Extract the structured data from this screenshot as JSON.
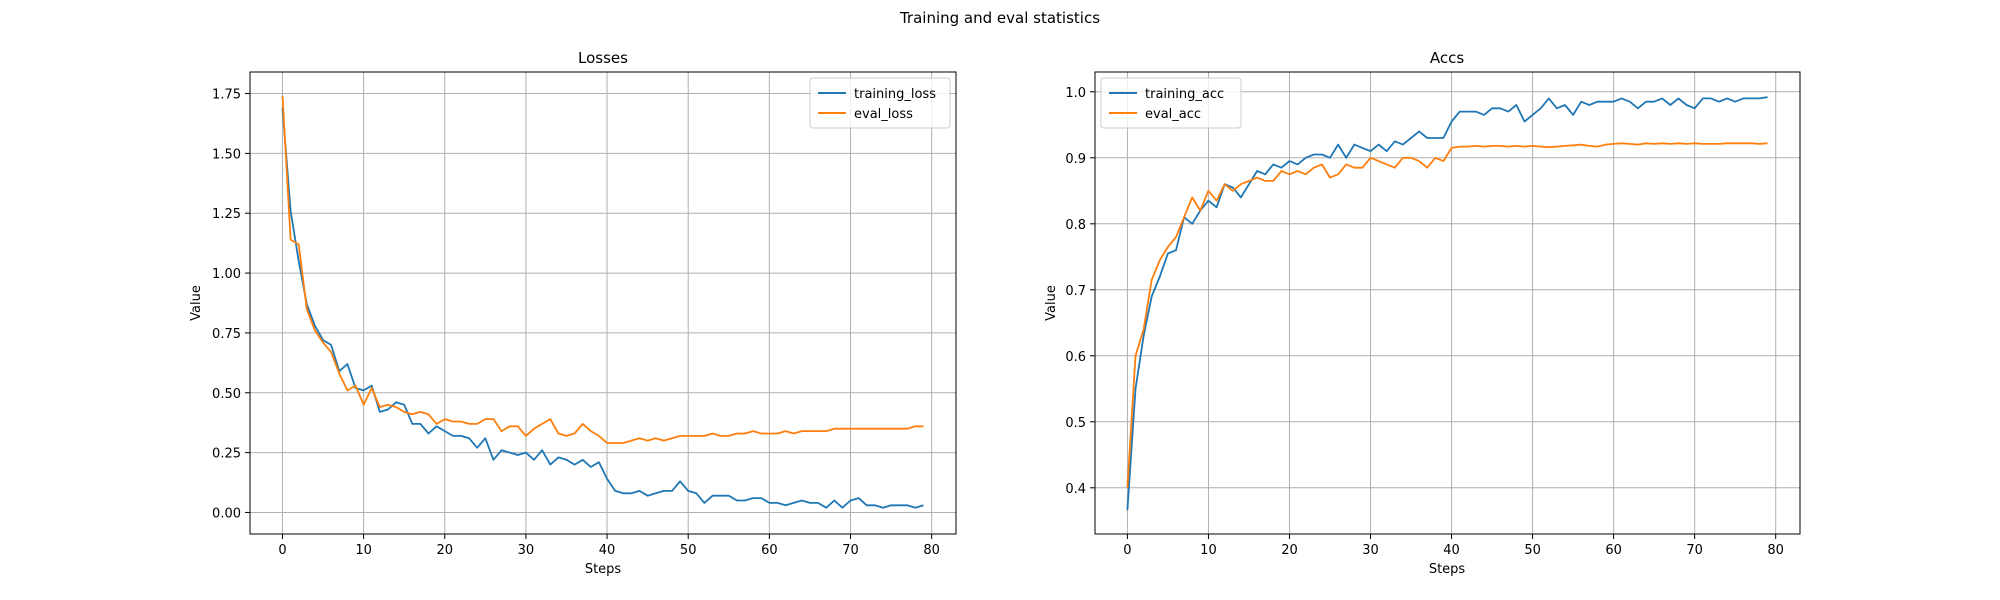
{
  "figure": {
    "suptitle": "Training and eval statistics"
  },
  "chart_data": [
    {
      "type": "line",
      "title": "Losses",
      "xlabel": "Steps",
      "ylabel": "Value",
      "xlim": [
        -4,
        83
      ],
      "ylim": [
        -0.09,
        1.84
      ],
      "xticks": [
        0,
        10,
        20,
        30,
        40,
        50,
        60,
        70,
        80
      ],
      "xtick_labels": [
        "0",
        "10",
        "20",
        "30",
        "40",
        "50",
        "60",
        "70",
        "80"
      ],
      "yticks": [
        0.0,
        0.25,
        0.5,
        0.75,
        1.0,
        1.25,
        1.5,
        1.75
      ],
      "ytick_labels": [
        "0.00",
        "0.25",
        "0.50",
        "0.75",
        "1.00",
        "1.25",
        "1.50",
        "1.75"
      ],
      "grid": true,
      "legend_position": "upper right",
      "series": [
        {
          "name": "training_loss",
          "color": "#1f77b4",
          "x": [
            0,
            1,
            2,
            3,
            4,
            5,
            6,
            7,
            8,
            9,
            10,
            11,
            12,
            13,
            14,
            15,
            16,
            17,
            18,
            19,
            20,
            21,
            22,
            23,
            24,
            25,
            26,
            27,
            28,
            29,
            30,
            31,
            32,
            33,
            34,
            35,
            36,
            37,
            38,
            39,
            40,
            41,
            42,
            43,
            44,
            45,
            46,
            47,
            48,
            49,
            50,
            51,
            52,
            53,
            54,
            55,
            56,
            57,
            58,
            59,
            60,
            61,
            62,
            63,
            64,
            65,
            66,
            67,
            68,
            69,
            70,
            71,
            72,
            73,
            74,
            75,
            76,
            77,
            78,
            79
          ],
          "values": [
            1.69,
            1.26,
            1.05,
            0.87,
            0.78,
            0.72,
            0.7,
            0.59,
            0.62,
            0.52,
            0.51,
            0.53,
            0.42,
            0.43,
            0.46,
            0.45,
            0.37,
            0.37,
            0.33,
            0.36,
            0.34,
            0.32,
            0.32,
            0.31,
            0.27,
            0.31,
            0.22,
            0.26,
            0.25,
            0.24,
            0.25,
            0.22,
            0.26,
            0.2,
            0.23,
            0.22,
            0.2,
            0.22,
            0.19,
            0.21,
            0.14,
            0.09,
            0.08,
            0.08,
            0.09,
            0.07,
            0.08,
            0.09,
            0.09,
            0.13,
            0.09,
            0.08,
            0.04,
            0.07,
            0.07,
            0.07,
            0.05,
            0.05,
            0.06,
            0.06,
            0.04,
            0.04,
            0.03,
            0.04,
            0.05,
            0.04,
            0.04,
            0.02,
            0.05,
            0.02,
            0.05,
            0.06,
            0.03,
            0.03,
            0.02,
            0.03,
            0.03,
            0.03,
            0.02,
            0.03
          ]
        },
        {
          "name": "eval_loss",
          "color": "#ff7f0e",
          "x": [
            0,
            1,
            2,
            3,
            4,
            5,
            6,
            7,
            8,
            9,
            10,
            11,
            12,
            13,
            14,
            15,
            16,
            17,
            18,
            19,
            20,
            21,
            22,
            23,
            24,
            25,
            26,
            27,
            28,
            29,
            30,
            31,
            32,
            33,
            34,
            35,
            36,
            37,
            38,
            39,
            40,
            41,
            42,
            43,
            44,
            45,
            46,
            47,
            48,
            49,
            50,
            51,
            52,
            53,
            54,
            55,
            56,
            57,
            58,
            59,
            60,
            61,
            62,
            63,
            64,
            65,
            66,
            67,
            68,
            69,
            70,
            71,
            72,
            73,
            74,
            75,
            76,
            77,
            78,
            79
          ],
          "values": [
            1.74,
            1.14,
            1.12,
            0.85,
            0.76,
            0.71,
            0.67,
            0.58,
            0.51,
            0.53,
            0.45,
            0.52,
            0.44,
            0.45,
            0.44,
            0.42,
            0.41,
            0.42,
            0.41,
            0.37,
            0.39,
            0.38,
            0.38,
            0.37,
            0.37,
            0.39,
            0.39,
            0.34,
            0.36,
            0.36,
            0.32,
            0.35,
            0.37,
            0.39,
            0.33,
            0.32,
            0.33,
            0.37,
            0.34,
            0.32,
            0.29,
            0.29,
            0.29,
            0.3,
            0.31,
            0.3,
            0.31,
            0.3,
            0.31,
            0.32,
            0.32,
            0.32,
            0.32,
            0.33,
            0.32,
            0.32,
            0.33,
            0.33,
            0.34,
            0.33,
            0.33,
            0.33,
            0.34,
            0.33,
            0.34,
            0.34,
            0.34,
            0.34,
            0.35,
            0.35,
            0.35,
            0.35,
            0.35,
            0.35,
            0.35,
            0.35,
            0.35,
            0.35,
            0.36,
            0.36
          ]
        }
      ]
    },
    {
      "type": "line",
      "title": "Accs",
      "xlabel": "Steps",
      "ylabel": "Value",
      "xlim": [
        -4,
        83
      ],
      "ylim": [
        0.33,
        1.03
      ],
      "xticks": [
        0,
        10,
        20,
        30,
        40,
        50,
        60,
        70,
        80
      ],
      "xtick_labels": [
        "0",
        "10",
        "20",
        "30",
        "40",
        "50",
        "60",
        "70",
        "80"
      ],
      "yticks": [
        0.4,
        0.5,
        0.6,
        0.7,
        0.8,
        0.9,
        1.0
      ],
      "ytick_labels": [
        "0.4",
        "0.5",
        "0.6",
        "0.7",
        "0.8",
        "0.9",
        "1.0"
      ],
      "grid": true,
      "legend_position": "upper left",
      "series": [
        {
          "name": "training_acc",
          "color": "#1f77b4",
          "x": [
            0,
            1,
            2,
            3,
            4,
            5,
            6,
            7,
            8,
            9,
            10,
            11,
            12,
            13,
            14,
            15,
            16,
            17,
            18,
            19,
            20,
            21,
            22,
            23,
            24,
            25,
            26,
            27,
            28,
            29,
            30,
            31,
            32,
            33,
            34,
            35,
            36,
            37,
            38,
            39,
            40,
            41,
            42,
            43,
            44,
            45,
            46,
            47,
            48,
            49,
            50,
            51,
            52,
            53,
            54,
            55,
            56,
            57,
            58,
            59,
            60,
            61,
            62,
            63,
            64,
            65,
            66,
            67,
            68,
            69,
            70,
            71,
            72,
            73,
            74,
            75,
            76,
            77,
            78,
            79
          ],
          "values": [
            0.366,
            0.55,
            0.63,
            0.69,
            0.72,
            0.755,
            0.76,
            0.81,
            0.8,
            0.82,
            0.835,
            0.825,
            0.86,
            0.855,
            0.84,
            0.86,
            0.88,
            0.875,
            0.89,
            0.885,
            0.895,
            0.89,
            0.9,
            0.905,
            0.905,
            0.9,
            0.92,
            0.9,
            0.92,
            0.915,
            0.91,
            0.92,
            0.91,
            0.925,
            0.92,
            0.93,
            0.94,
            0.93,
            0.93,
            0.93,
            0.955,
            0.97,
            0.97,
            0.97,
            0.965,
            0.975,
            0.975,
            0.97,
            0.98,
            0.955,
            0.965,
            0.975,
            0.99,
            0.975,
            0.98,
            0.965,
            0.985,
            0.98,
            0.985,
            0.985,
            0.985,
            0.99,
            0.985,
            0.975,
            0.985,
            0.985,
            0.99,
            0.98,
            0.99,
            0.98,
            0.975,
            0.99,
            0.99,
            0.985,
            0.99,
            0.985,
            0.99,
            0.99,
            0.99,
            0.992
          ]
        },
        {
          "name": "eval_acc",
          "color": "#ff7f0e",
          "x": [
            0,
            1,
            2,
            3,
            4,
            5,
            6,
            7,
            8,
            9,
            10,
            11,
            12,
            13,
            14,
            15,
            16,
            17,
            18,
            19,
            20,
            21,
            22,
            23,
            24,
            25,
            26,
            27,
            28,
            29,
            30,
            31,
            32,
            33,
            34,
            35,
            36,
            37,
            38,
            39,
            40,
            41,
            42,
            43,
            44,
            45,
            46,
            47,
            48,
            49,
            50,
            51,
            52,
            53,
            54,
            55,
            56,
            57,
            58,
            59,
            60,
            61,
            62,
            63,
            64,
            65,
            66,
            67,
            68,
            69,
            70,
            71,
            72,
            73,
            74,
            75,
            76,
            77,
            78,
            79
          ],
          "values": [
            0.4,
            0.6,
            0.64,
            0.715,
            0.745,
            0.765,
            0.78,
            0.81,
            0.84,
            0.82,
            0.85,
            0.835,
            0.86,
            0.85,
            0.86,
            0.865,
            0.87,
            0.865,
            0.865,
            0.88,
            0.875,
            0.88,
            0.875,
            0.885,
            0.89,
            0.87,
            0.875,
            0.89,
            0.885,
            0.885,
            0.9,
            0.895,
            0.89,
            0.885,
            0.9,
            0.9,
            0.895,
            0.885,
            0.9,
            0.895,
            0.915,
            0.917,
            0.917,
            0.918,
            0.917,
            0.918,
            0.918,
            0.917,
            0.918,
            0.917,
            0.918,
            0.917,
            0.916,
            0.917,
            0.918,
            0.919,
            0.92,
            0.918,
            0.917,
            0.92,
            0.921,
            0.922,
            0.921,
            0.92,
            0.922,
            0.921,
            0.922,
            0.921,
            0.922,
            0.921,
            0.922,
            0.921,
            0.921,
            0.921,
            0.922,
            0.922,
            0.922,
            0.922,
            0.921,
            0.922
          ]
        }
      ]
    }
  ]
}
